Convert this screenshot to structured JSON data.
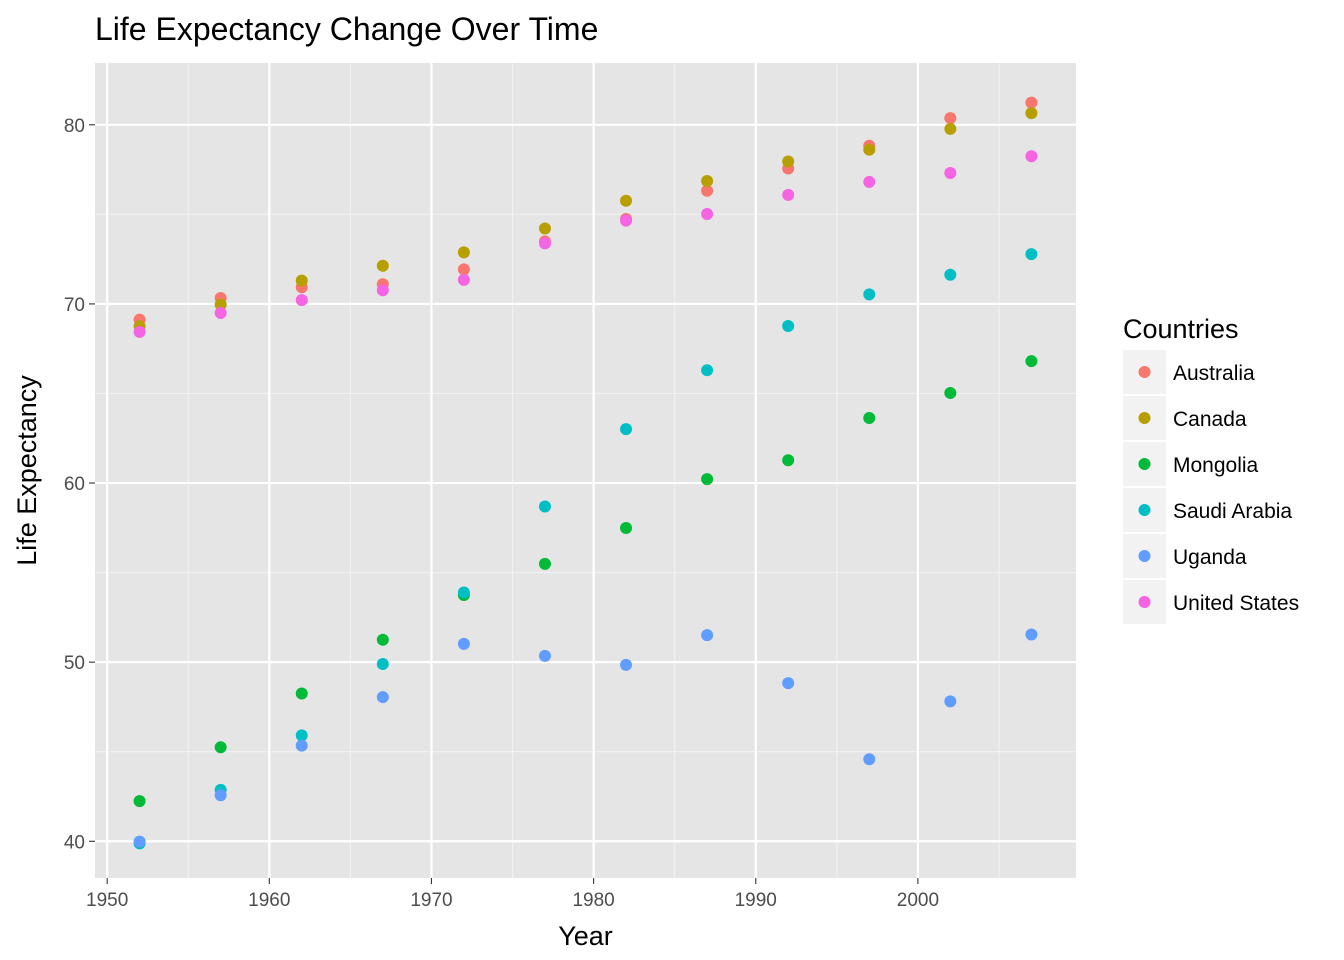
{
  "chart_data": {
    "type": "scatter",
    "title": "Life Expectancy Change Over Time",
    "xlabel": "Year",
    "ylabel": "Life Expectancy",
    "xlim": [
      1949.25,
      2009.75
    ],
    "ylim": [
      37.95,
      83.45
    ],
    "x_ticks": [
      1950,
      1960,
      1970,
      1980,
      1990,
      2000
    ],
    "x_tick_labels": [
      "1950",
      "1960",
      "1970",
      "1980",
      "1990",
      "2000"
    ],
    "x_minor_ticks": [
      1955,
      1965,
      1975,
      1985,
      1995,
      2005
    ],
    "y_ticks": [
      40,
      50,
      60,
      70,
      80
    ],
    "y_tick_labels": [
      "40",
      "50",
      "60",
      "70",
      "80"
    ],
    "y_minor_ticks": [
      45,
      55,
      65,
      75
    ],
    "grid": true,
    "panel_background": "#e5e5e5",
    "legend": {
      "title": "Countries",
      "position": "right"
    },
    "x": [
      1952,
      1957,
      1962,
      1967,
      1972,
      1977,
      1982,
      1987,
      1992,
      1997,
      2002,
      2007
    ],
    "series": [
      {
        "name": "Australia",
        "color": "#F8766D",
        "values": [
          69.12,
          70.33,
          70.93,
          71.1,
          71.93,
          73.49,
          74.74,
          76.32,
          77.56,
          78.83,
          80.37,
          81.235
        ]
      },
      {
        "name": "Canada",
        "color": "#B79F00",
        "values": [
          68.75,
          69.96,
          71.3,
          72.13,
          72.88,
          74.21,
          75.76,
          76.86,
          77.95,
          78.61,
          79.77,
          80.653
        ]
      },
      {
        "name": "Mongolia",
        "color": "#00BA38",
        "values": [
          42.24,
          45.25,
          48.25,
          51.25,
          53.75,
          55.49,
          57.49,
          60.22,
          61.27,
          63.63,
          65.03,
          66.803
        ]
      },
      {
        "name": "Saudi Arabia",
        "color": "#00BFC4",
        "values": [
          39.88,
          42.87,
          45.91,
          49.9,
          53.89,
          58.69,
          63.01,
          66.3,
          68.77,
          70.53,
          71.63,
          72.777
        ]
      },
      {
        "name": "Uganda",
        "color": "#619CFF",
        "values": [
          39.98,
          42.57,
          45.34,
          48.05,
          51.02,
          50.35,
          49.85,
          51.51,
          48.83,
          44.58,
          47.81,
          51.542
        ]
      },
      {
        "name": "United States",
        "color": "#F564E3",
        "values": [
          68.44,
          69.49,
          70.21,
          70.76,
          71.34,
          73.38,
          74.65,
          75.02,
          76.09,
          76.81,
          77.31,
          78.242
        ]
      }
    ]
  }
}
